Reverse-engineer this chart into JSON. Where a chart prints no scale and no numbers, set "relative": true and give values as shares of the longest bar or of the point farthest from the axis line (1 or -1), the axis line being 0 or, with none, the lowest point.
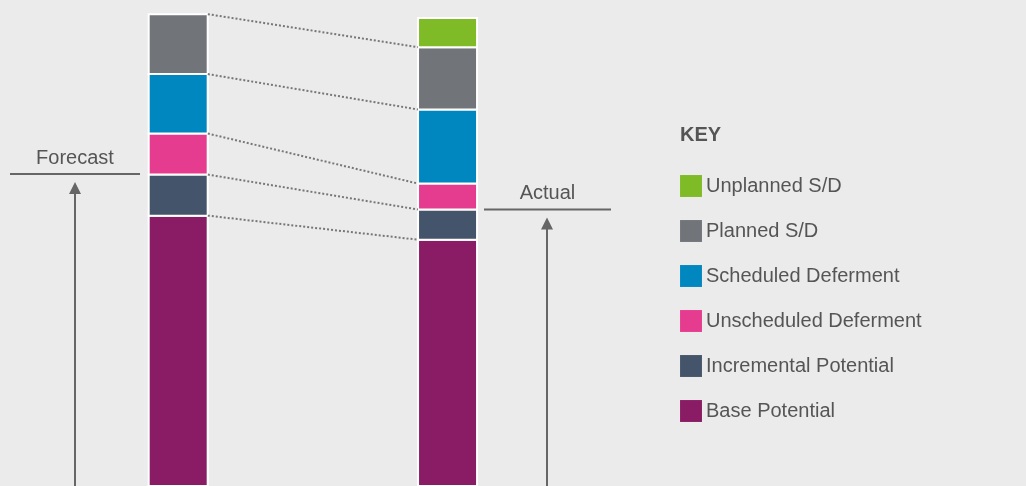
{
  "chart_data": {
    "type": "bar",
    "relative": true,
    "stacked": true,
    "categories": [
      null,
      null
    ],
    "legend": "right",
    "legend_title": "KEY",
    "series": [
      {
        "name": "Base Potential",
        "color": "#8a1c65",
        "values": [
          0.573,
          0.522
        ]
      },
      {
        "name": "Incremental Potential",
        "color": "#44546a",
        "values": [
          0.087,
          0.064
        ]
      },
      {
        "name": "Unscheduled Deferment",
        "color": "#e63c8f",
        "values": [
          0.087,
          0.055
        ]
      },
      {
        "name": "Scheduled Deferment",
        "color": "#0087c0",
        "values": [
          0.126,
          0.157
        ]
      },
      {
        "name": "Planned S/D",
        "color": "#717479",
        "values": [
          0.127,
          0.132
        ]
      },
      {
        "name": "Unplanned S/D",
        "color": "#7fba27",
        "values": [
          0,
          0.062
        ]
      }
    ],
    "ref_lines": [
      {
        "axis": "y",
        "value": 0.661,
        "label": "Forecast",
        "color": "#666666"
      },
      {
        "axis": "y",
        "value": 0.586,
        "label": "Actual",
        "color": "#666666"
      }
    ]
  }
}
